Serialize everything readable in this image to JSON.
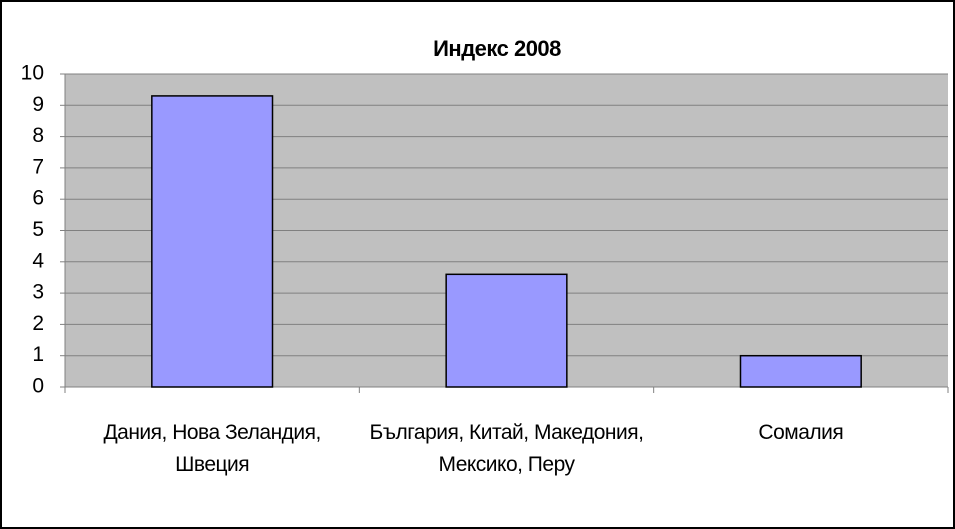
{
  "chart_data": {
    "type": "bar",
    "title": "Индекс 2008",
    "categories": [
      "Дания, Нова Зеландия, Швеция",
      "България, Китай, Македония, Мексико, Перу",
      "Сомалия"
    ],
    "values": [
      9.3,
      3.6,
      1.0
    ],
    "color": "#9999ff",
    "ylim": [
      0,
      10
    ],
    "yticks": [
      0,
      1,
      2,
      3,
      4,
      5,
      6,
      7,
      8,
      9,
      10
    ],
    "grid": true
  }
}
